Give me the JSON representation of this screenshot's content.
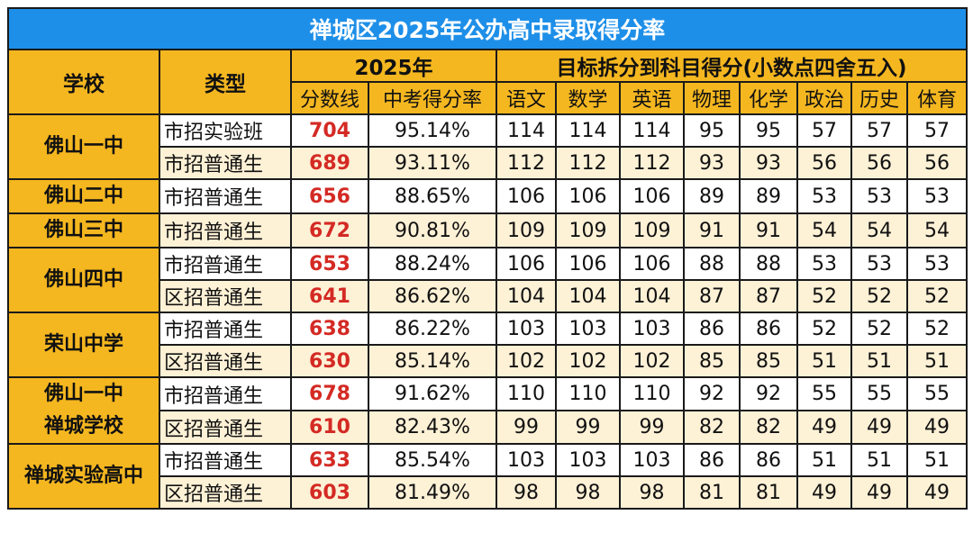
{
  "title": "禅城区2025年公办高中录取得分率",
  "headers": {
    "school": "学校",
    "type": "类型",
    "year_group": "2025年",
    "score_line": "分数线",
    "rate": "中考得分率",
    "target_group": "目标拆分到科目得分(小数点四舍五入)",
    "subjects": [
      "语文",
      "数学",
      "英语",
      "物理",
      "化学",
      "政治",
      "历史",
      "体育"
    ]
  },
  "schools": [
    {
      "name_lines": [
        "佛山一中"
      ],
      "rows": [
        {
          "type": "市招实验班",
          "score": "704",
          "rate": "95.14%",
          "subjects": [
            "114",
            "114",
            "114",
            "95",
            "95",
            "57",
            "57",
            "57"
          ]
        },
        {
          "type": "市招普通生",
          "score": "689",
          "rate": "93.11%",
          "subjects": [
            "112",
            "112",
            "112",
            "93",
            "93",
            "56",
            "56",
            "56"
          ]
        }
      ]
    },
    {
      "name_lines": [
        "佛山二中"
      ],
      "rows": [
        {
          "type": "市招普通生",
          "score": "656",
          "rate": "88.65%",
          "subjects": [
            "106",
            "106",
            "106",
            "89",
            "89",
            "53",
            "53",
            "53"
          ]
        }
      ]
    },
    {
      "name_lines": [
        "佛山三中"
      ],
      "rows": [
        {
          "type": "市招普通生",
          "score": "672",
          "rate": "90.81%",
          "subjects": [
            "109",
            "109",
            "109",
            "91",
            "91",
            "54",
            "54",
            "54"
          ]
        }
      ]
    },
    {
      "name_lines": [
        "佛山四中"
      ],
      "rows": [
        {
          "type": "市招普通生",
          "score": "653",
          "rate": "88.24%",
          "subjects": [
            "106",
            "106",
            "106",
            "88",
            "88",
            "53",
            "53",
            "53"
          ]
        },
        {
          "type": "区招普通生",
          "score": "641",
          "rate": "86.62%",
          "subjects": [
            "104",
            "104",
            "104",
            "87",
            "87",
            "52",
            "52",
            "52"
          ]
        }
      ]
    },
    {
      "name_lines": [
        "荣山中学"
      ],
      "rows": [
        {
          "type": "市招普通生",
          "score": "638",
          "rate": "86.22%",
          "subjects": [
            "103",
            "103",
            "103",
            "86",
            "86",
            "52",
            "52",
            "52"
          ]
        },
        {
          "type": "区招普通生",
          "score": "630",
          "rate": "85.14%",
          "subjects": [
            "102",
            "102",
            "102",
            "85",
            "85",
            "51",
            "51",
            "51"
          ]
        }
      ]
    },
    {
      "name_lines": [
        "佛山一中",
        "禅城学校"
      ],
      "rows": [
        {
          "type": "市招普通生",
          "score": "678",
          "rate": "91.62%",
          "subjects": [
            "110",
            "110",
            "110",
            "92",
            "92",
            "55",
            "55",
            "55"
          ]
        },
        {
          "type": "区招普通生",
          "score": "610",
          "rate": "82.43%",
          "subjects": [
            "99",
            "99",
            "99",
            "82",
            "82",
            "49",
            "49",
            "49"
          ]
        }
      ]
    },
    {
      "name_lines": [
        "禅城实验高中"
      ],
      "rows": [
        {
          "type": "市招普通生",
          "score": "633",
          "rate": "85.54%",
          "subjects": [
            "103",
            "103",
            "103",
            "86",
            "86",
            "51",
            "51",
            "51"
          ]
        },
        {
          "type": "区招普通生",
          "score": "603",
          "rate": "81.49%",
          "subjects": [
            "98",
            "98",
            "98",
            "81",
            "81",
            "49",
            "49",
            "49"
          ]
        }
      ]
    }
  ]
}
